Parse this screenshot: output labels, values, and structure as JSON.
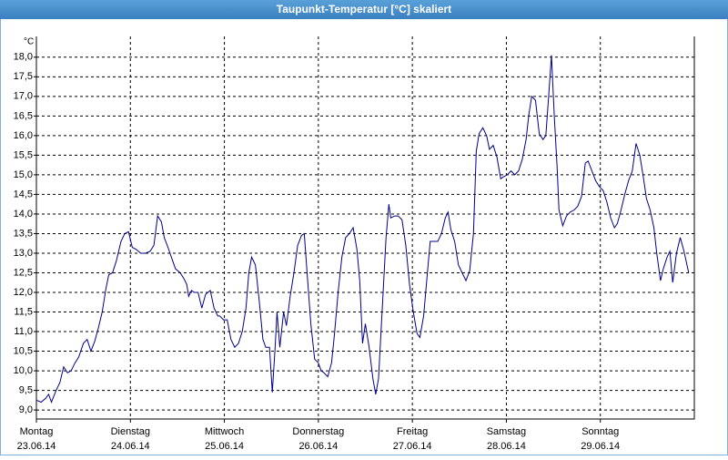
{
  "chart_data": {
    "type": "line",
    "title": "Taupunkt-Temperatur [°C] skaliert",
    "y_unit": "°C",
    "x": [
      0,
      0.05,
      0.1,
      0.13,
      0.16,
      0.21,
      0.25,
      0.29,
      0.33,
      0.37,
      0.41,
      0.45,
      0.5,
      0.54,
      0.58,
      0.62,
      0.66,
      0.7,
      0.74,
      0.77,
      0.81,
      0.85,
      0.9,
      0.94,
      0.98,
      1.02,
      1.06,
      1.11,
      1.16,
      1.21,
      1.25,
      1.29,
      1.33,
      1.36,
      1.4,
      1.45,
      1.48,
      1.53,
      1.57,
      1.6,
      1.62,
      1.65,
      1.68,
      1.72,
      1.76,
      1.8,
      1.85,
      1.89,
      1.93,
      1.95,
      1.99,
      2.03,
      2.07,
      2.11,
      2.15,
      2.19,
      2.23,
      2.26,
      2.29,
      2.33,
      2.37,
      2.41,
      2.44,
      2.48,
      2.51,
      2.54,
      2.56,
      2.59,
      2.63,
      2.66,
      2.7,
      2.74,
      2.78,
      2.82,
      2.85,
      2.88,
      2.92,
      2.96,
      3.0,
      3.03,
      3.06,
      3.1,
      3.14,
      3.17,
      3.21,
      3.25,
      3.29,
      3.33,
      3.37,
      3.41,
      3.44,
      3.47,
      3.5,
      3.54,
      3.58,
      3.61,
      3.64,
      3.68,
      3.72,
      3.75,
      3.77,
      3.81,
      3.85,
      3.89,
      3.93,
      3.97,
      4.01,
      4.05,
      4.08,
      4.12,
      4.16,
      4.19,
      4.23,
      4.27,
      4.31,
      4.35,
      4.38,
      4.41,
      4.45,
      4.49,
      4.53,
      4.57,
      4.61,
      4.65,
      4.68,
      4.71,
      4.75,
      4.79,
      4.82,
      4.86,
      4.9,
      4.94,
      4.97,
      5.01,
      5.05,
      5.09,
      5.13,
      5.17,
      5.21,
      5.24,
      5.27,
      5.31,
      5.35,
      5.39,
      5.42,
      5.45,
      5.48,
      5.51,
      5.54,
      5.56,
      5.6,
      5.64,
      5.68,
      5.72,
      5.76,
      5.8,
      5.84,
      5.87,
      5.91,
      5.95,
      5.99,
      6.03,
      6.07,
      6.11,
      6.15,
      6.18,
      6.22,
      6.26,
      6.3,
      6.34,
      6.38,
      6.42,
      6.46,
      6.49,
      6.53,
      6.57,
      6.6,
      6.64,
      6.67,
      6.71,
      6.74,
      6.77,
      6.81,
      6.85,
      6.89,
      6.94
    ],
    "series": [
      {
        "color": "#00008b",
        "values": [
          9.25,
          9.2,
          9.3,
          9.4,
          9.2,
          9.5,
          9.7,
          10.1,
          9.95,
          10.0,
          10.2,
          10.35,
          10.7,
          10.8,
          10.5,
          10.75,
          11.1,
          11.5,
          12.1,
          12.45,
          12.5,
          12.8,
          13.3,
          13.5,
          13.55,
          13.15,
          13.1,
          13.0,
          13.0,
          13.05,
          13.2,
          13.95,
          13.8,
          13.4,
          13.15,
          12.8,
          12.6,
          12.5,
          12.35,
          12.2,
          11.9,
          12.05,
          12.0,
          12.0,
          11.6,
          11.95,
          12.05,
          11.6,
          11.4,
          11.4,
          11.3,
          11.3,
          10.8,
          10.6,
          10.7,
          11.0,
          11.6,
          12.5,
          12.9,
          12.7,
          11.8,
          10.8,
          10.6,
          10.6,
          9.45,
          10.6,
          11.5,
          10.6,
          11.5,
          11.15,
          11.9,
          12.5,
          13.2,
          13.45,
          13.5,
          12.5,
          11.2,
          10.3,
          10.2,
          10.0,
          9.95,
          9.85,
          10.2,
          10.9,
          12.0,
          12.9,
          13.4,
          13.5,
          13.65,
          13.1,
          12.3,
          10.7,
          11.2,
          10.6,
          9.8,
          9.4,
          9.8,
          11.6,
          13.4,
          14.25,
          13.9,
          13.95,
          13.95,
          13.85,
          13.2,
          12.2,
          11.5,
          10.95,
          10.85,
          11.4,
          12.5,
          13.3,
          13.3,
          13.3,
          13.5,
          13.9,
          14.05,
          13.6,
          13.3,
          12.7,
          12.5,
          12.3,
          12.55,
          13.5,
          15.6,
          16.05,
          16.2,
          16.0,
          15.65,
          15.75,
          15.45,
          14.9,
          14.95,
          15.0,
          15.1,
          15.0,
          15.1,
          15.4,
          15.9,
          16.55,
          17.0,
          16.9,
          16.05,
          15.9,
          16.0,
          17.0,
          18.05,
          16.5,
          15.2,
          14.1,
          13.7,
          13.95,
          14.05,
          14.1,
          14.2,
          14.45,
          15.3,
          15.35,
          15.1,
          14.85,
          14.7,
          14.6,
          14.3,
          13.9,
          13.65,
          13.75,
          14.1,
          14.5,
          14.85,
          15.1,
          15.8,
          15.5,
          14.9,
          14.4,
          14.1,
          13.65,
          13.0,
          12.3,
          12.6,
          12.9,
          13.05,
          12.25,
          13.0,
          13.4,
          13.05,
          12.5
        ]
      }
    ],
    "xlim": [
      0,
      7
    ],
    "xticks": [
      {
        "value": 0,
        "label": "Montag"
      },
      {
        "value": 1,
        "label": "Dienstag"
      },
      {
        "value": 2,
        "label": "Mittwoch"
      },
      {
        "value": 3,
        "label": "Donnerstag"
      },
      {
        "value": 4,
        "label": "Freitag"
      },
      {
        "value": 5,
        "label": "Samstag"
      },
      {
        "value": 6,
        "label": "Sonntag"
      }
    ],
    "x_dates": [
      "23.06.14",
      "24.06.14",
      "25.06.14",
      "26.06.14",
      "27.06.14",
      "28.06.14",
      "29.06.14"
    ],
    "ylim": [
      8.77,
      18.53
    ],
    "yticks": [
      {
        "value": 9,
        "label": "9,0"
      },
      {
        "value": 9.5,
        "label": "9,5"
      },
      {
        "value": 10,
        "label": "10,0"
      },
      {
        "value": 10.5,
        "label": "10,5"
      },
      {
        "value": 11,
        "label": "11,0"
      },
      {
        "value": 11.5,
        "label": "11,5"
      },
      {
        "value": 12,
        "label": "12,0"
      },
      {
        "value": 12.5,
        "label": "12,5"
      },
      {
        "value": 13,
        "label": "13,0"
      },
      {
        "value": 13.5,
        "label": "13,5"
      },
      {
        "value": 14,
        "label": "14,0"
      },
      {
        "value": 14.5,
        "label": "14,5"
      },
      {
        "value": 15,
        "label": "15,0"
      },
      {
        "value": 15.5,
        "label": "15,5"
      },
      {
        "value": 16,
        "label": "16,0"
      },
      {
        "value": 16.5,
        "label": "16,5"
      },
      {
        "value": 17,
        "label": "17,0"
      },
      {
        "value": 17.5,
        "label": "17,5"
      },
      {
        "value": 18,
        "label": "18,0"
      }
    ],
    "grid": true
  }
}
